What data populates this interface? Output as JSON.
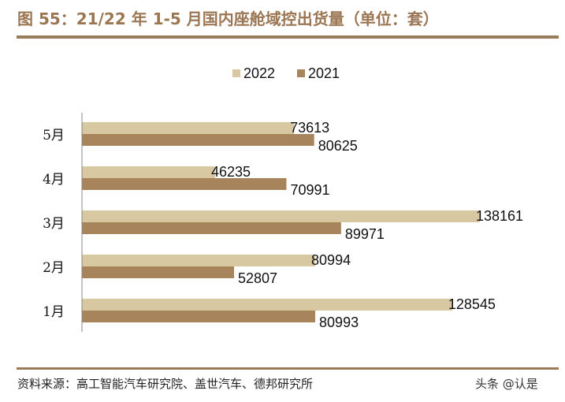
{
  "title": "图 55：21/22 年 1-5 月国内座舱域控出货量（单位：套）",
  "source": "资料来源：高工智能汽车研究院、盖世汽车、德邦研究所",
  "watermark": "头条 @认是",
  "colors": {
    "title": "#9b7653",
    "s2022": "#d8c8a2",
    "s2021": "#a8845d"
  },
  "chart_data": {
    "type": "bar",
    "orientation": "horizontal",
    "categories": [
      "5月",
      "4月",
      "3月",
      "2月",
      "1月"
    ],
    "series": [
      {
        "name": "2022",
        "values": [
          73613,
          46235,
          138161,
          80994,
          128545
        ]
      },
      {
        "name": "2021",
        "values": [
          80625,
          70991,
          89971,
          52807,
          80993
        ]
      }
    ],
    "legend": "top-center",
    "grid": false,
    "xlim": [
      0,
      138161
    ]
  }
}
